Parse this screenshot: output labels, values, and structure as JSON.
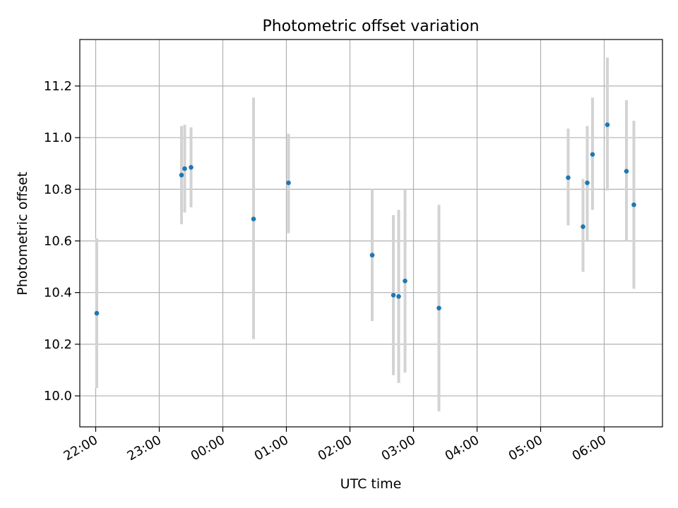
{
  "chart_data": {
    "type": "scatter",
    "title": "Photometric offset variation",
    "xlabel": "UTC time",
    "ylabel": "Photometric offset",
    "x_range": [
      "21:45",
      "06:55"
    ],
    "y_range": [
      9.88,
      11.38
    ],
    "x_ticks": [
      "22:00",
      "23:00",
      "00:00",
      "01:00",
      "02:00",
      "03:00",
      "04:00",
      "05:00",
      "06:00"
    ],
    "y_ticks": [
      "10.0",
      "10.2",
      "10.4",
      "10.6",
      "10.8",
      "11.0",
      "11.2"
    ],
    "grid": true,
    "point_color": "#1f77b4",
    "errorbar_color": "#d3d3d3",
    "points": [
      {
        "x": "22:01",
        "y": 10.32,
        "low": 10.03,
        "high": 10.61
      },
      {
        "x": "23:21",
        "y": 10.855,
        "low": 10.665,
        "high": 11.045
      },
      {
        "x": "23:24",
        "y": 10.88,
        "low": 10.71,
        "high": 11.05
      },
      {
        "x": "23:30",
        "y": 10.885,
        "low": 10.73,
        "high": 11.04
      },
      {
        "x": "00:29",
        "y": 10.685,
        "low": 10.22,
        "high": 11.155
      },
      {
        "x": "01:02",
        "y": 10.825,
        "low": 10.63,
        "high": 11.015
      },
      {
        "x": "02:21",
        "y": 10.545,
        "low": 10.29,
        "high": 10.8
      },
      {
        "x": "02:41",
        "y": 10.39,
        "low": 10.08,
        "high": 10.7
      },
      {
        "x": "02:46",
        "y": 10.385,
        "low": 10.05,
        "high": 10.72
      },
      {
        "x": "02:52",
        "y": 10.445,
        "low": 10.09,
        "high": 10.8
      },
      {
        "x": "03:24",
        "y": 10.34,
        "low": 9.94,
        "high": 10.74
      },
      {
        "x": "05:26",
        "y": 10.845,
        "low": 10.66,
        "high": 11.035
      },
      {
        "x": "05:40",
        "y": 10.655,
        "low": 10.48,
        "high": 10.84
      },
      {
        "x": "05:44",
        "y": 10.825,
        "low": 10.6,
        "high": 11.045
      },
      {
        "x": "05:49",
        "y": 10.935,
        "low": 10.72,
        "high": 11.155
      },
      {
        "x": "06:03",
        "y": 11.05,
        "low": 10.795,
        "high": 11.31
      },
      {
        "x": "06:21",
        "y": 10.87,
        "low": 10.6,
        "high": 11.145
      },
      {
        "x": "06:28",
        "y": 10.74,
        "low": 10.415,
        "high": 11.065
      }
    ]
  }
}
